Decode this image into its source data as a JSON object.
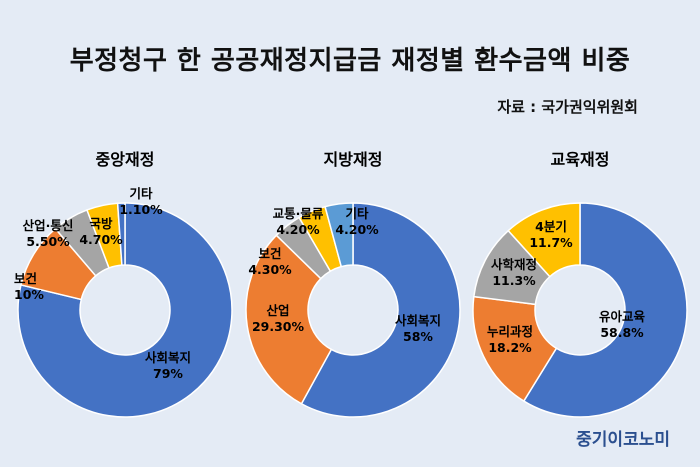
{
  "title": "부정청구 한 공공재정지급금 재정별 환수금액 비중",
  "source": "자료 : 국가권익위원회",
  "brand": "중기이코노미",
  "colors": {
    "blue": "#4472c4",
    "orange": "#ed7d31",
    "gray": "#a5a5a5",
    "yellow": "#ffc000",
    "lightblue": "#5b9bd5"
  },
  "chart_data": [
    {
      "type": "pie",
      "title": "중앙재정",
      "slices": [
        {
          "label": "사회복지",
          "value": 79,
          "value_text": "79%",
          "color": "blue"
        },
        {
          "label": "보건",
          "value": 10,
          "value_text": "10%",
          "color": "orange"
        },
        {
          "label": "산업·통신",
          "value": 5.5,
          "value_text": "5.50%",
          "color": "gray"
        },
        {
          "label": "국방",
          "value": 4.7,
          "value_text": "4.70%",
          "color": "yellow"
        },
        {
          "label": "기타",
          "value": 1.1,
          "value_text": "1.10%",
          "color": "blue"
        }
      ]
    },
    {
      "type": "pie",
      "title": "지방재정",
      "slices": [
        {
          "label": "사회복지",
          "value": 58,
          "value_text": "58%",
          "color": "blue"
        },
        {
          "label": "산업",
          "value": 29.3,
          "value_text": "29.30%",
          "color": "orange"
        },
        {
          "label": "보건",
          "value": 4.3,
          "value_text": "4.30%",
          "color": "gray"
        },
        {
          "label": "교통·물류",
          "value": 4.2,
          "value_text": "4.20%",
          "color": "yellow"
        },
        {
          "label": "기타",
          "value": 4.2,
          "value_text": "4.20%",
          "color": "lightblue"
        }
      ]
    },
    {
      "type": "pie",
      "title": "교육재정",
      "slices": [
        {
          "label": "유아교육",
          "value": 58.8,
          "value_text": "58.8%",
          "color": "blue"
        },
        {
          "label": "누리과정",
          "value": 18.2,
          "value_text": "18.2%",
          "color": "orange"
        },
        {
          "label": "사학재정",
          "value": 11.3,
          "value_text": "11.3%",
          "color": "gray"
        },
        {
          "label": "4분기",
          "value": 11.7,
          "value_text": "11.7%",
          "color": "yellow"
        }
      ]
    }
  ]
}
